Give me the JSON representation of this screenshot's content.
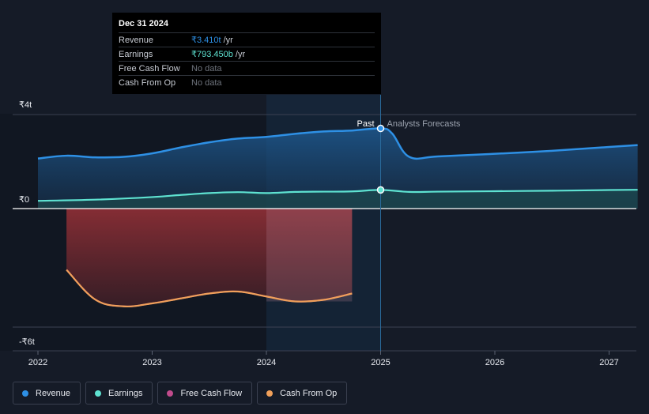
{
  "chart_data": {
    "type": "area",
    "currency": "₹",
    "x_ticks": [
      "2022",
      "2023",
      "2024",
      "2025",
      "2026",
      "2027"
    ],
    "y_tick_labels": [
      {
        "value": 4,
        "label": "₹4t"
      },
      {
        "value": 0,
        "label": "₹0"
      },
      {
        "value": -6,
        "label": "-₹6t"
      }
    ],
    "xlim": [
      2021.8,
      2027.25
    ],
    "ylim": [
      -6,
      4
    ],
    "past_label": "Past",
    "forecast_label": "Analysts Forecasts",
    "divider_x": 2025.0,
    "highlight_x_range": [
      2024.0,
      2025.0
    ],
    "series": [
      {
        "name": "Revenue",
        "color": "#2e90e5",
        "fill": true,
        "points": [
          [
            2022.0,
            2.13
          ],
          [
            2022.25,
            2.25
          ],
          [
            2022.5,
            2.18
          ],
          [
            2022.75,
            2.2
          ],
          [
            2023.0,
            2.35
          ],
          [
            2023.25,
            2.6
          ],
          [
            2023.5,
            2.82
          ],
          [
            2023.75,
            2.98
          ],
          [
            2024.0,
            3.05
          ],
          [
            2024.25,
            3.18
          ],
          [
            2024.5,
            3.28
          ],
          [
            2024.75,
            3.32
          ],
          [
            2025.0,
            3.41
          ],
          [
            2025.1,
            3.2
          ],
          [
            2025.25,
            2.2
          ],
          [
            2025.5,
            2.22
          ],
          [
            2026.0,
            2.33
          ],
          [
            2026.5,
            2.46
          ],
          [
            2027.0,
            2.62
          ],
          [
            2027.25,
            2.7
          ]
        ]
      },
      {
        "name": "Earnings",
        "color": "#5ee2d1",
        "fill": true,
        "points": [
          [
            2022.0,
            0.33
          ],
          [
            2022.5,
            0.38
          ],
          [
            2023.0,
            0.49
          ],
          [
            2023.25,
            0.58
          ],
          [
            2023.5,
            0.66
          ],
          [
            2023.75,
            0.7
          ],
          [
            2024.0,
            0.66
          ],
          [
            2024.25,
            0.71
          ],
          [
            2024.5,
            0.72
          ],
          [
            2024.75,
            0.73
          ],
          [
            2025.0,
            0.793
          ],
          [
            2025.25,
            0.71
          ],
          [
            2025.5,
            0.72
          ],
          [
            2026.0,
            0.74
          ],
          [
            2026.5,
            0.76
          ],
          [
            2027.0,
            0.79
          ],
          [
            2027.25,
            0.8
          ]
        ]
      },
      {
        "name": "Free Cash Flow",
        "color": "#c04b8c",
        "fill": true,
        "points": [
          [
            2022.25,
            -3.1
          ],
          [
            2022.5,
            -4.6
          ],
          [
            2022.75,
            -4.95
          ],
          [
            2023.0,
            -4.8
          ],
          [
            2023.25,
            -4.55
          ],
          [
            2023.5,
            -4.3
          ],
          [
            2023.75,
            -4.2
          ],
          [
            2024.0,
            -4.45
          ],
          [
            2024.25,
            -4.7
          ],
          [
            2024.5,
            -4.62
          ],
          [
            2024.75,
            -4.3
          ]
        ]
      },
      {
        "name": "Cash From Op",
        "color": "#f0a05a",
        "fill": false,
        "points": [
          [
            2022.25,
            -3.1
          ],
          [
            2022.5,
            -4.6
          ],
          [
            2022.75,
            -4.95
          ],
          [
            2023.0,
            -4.8
          ],
          [
            2023.25,
            -4.55
          ],
          [
            2023.5,
            -4.3
          ],
          [
            2023.75,
            -4.2
          ],
          [
            2024.0,
            -4.45
          ],
          [
            2024.25,
            -4.7
          ],
          [
            2024.5,
            -4.62
          ],
          [
            2024.75,
            -4.3
          ]
        ]
      }
    ],
    "highlight_points": [
      {
        "series": "Revenue",
        "x": 2025.0,
        "y": 3.41
      },
      {
        "series": "Earnings",
        "x": 2025.0,
        "y": 0.793
      }
    ]
  },
  "tooltip": {
    "date": "Dec 31 2024",
    "rows": [
      {
        "label": "Revenue",
        "value": "₹3.410t",
        "unit": "/yr",
        "color": "#2e90e5"
      },
      {
        "label": "Earnings",
        "value": "₹793.450b",
        "unit": "/yr",
        "color": "#5ee2d1"
      },
      {
        "label": "Free Cash Flow",
        "value": "No data",
        "unit": "",
        "color": ""
      },
      {
        "label": "Cash From Op",
        "value": "No data",
        "unit": "",
        "color": ""
      }
    ]
  },
  "legend": [
    {
      "label": "Revenue",
      "color": "#2e90e5"
    },
    {
      "label": "Earnings",
      "color": "#5ee2d1"
    },
    {
      "label": "Free Cash Flow",
      "color": "#c04b8c"
    },
    {
      "label": "Cash From Op",
      "color": "#f0a05a"
    }
  ]
}
